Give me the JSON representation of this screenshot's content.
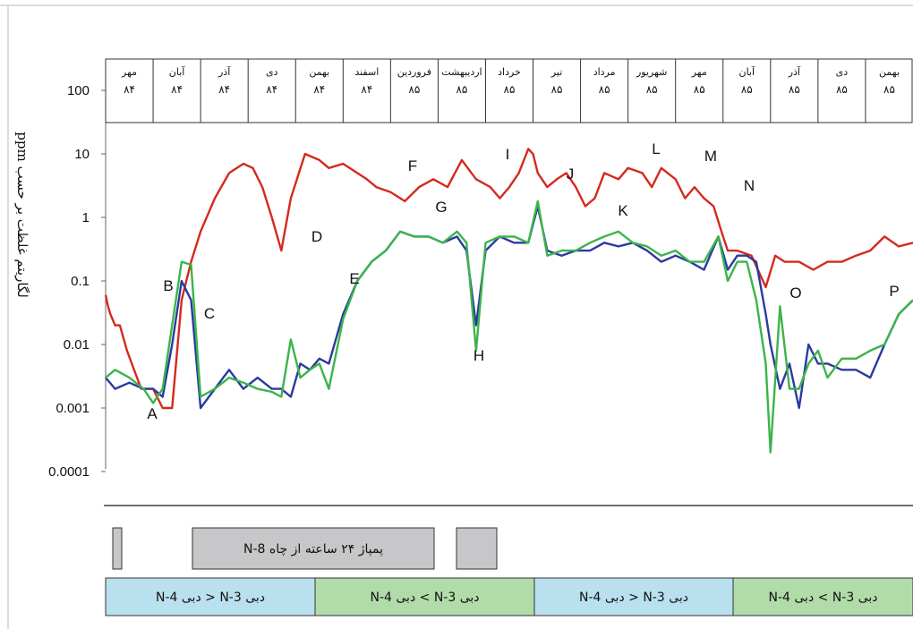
{
  "chart_data": {
    "type": "line",
    "title": "",
    "ylabel": "لگاریتم غلظت بر حسب ppm",
    "yscale": "log",
    "ylim": [
      0.0001,
      100
    ],
    "y_ticks": [
      "100",
      "10",
      "1",
      "0.1",
      "0.01",
      "0.001",
      "0.0001"
    ],
    "x_months": [
      {
        "name": "مهر",
        "year": "۸۴"
      },
      {
        "name": "آبان",
        "year": "۸۴"
      },
      {
        "name": "آذر",
        "year": "۸۴"
      },
      {
        "name": "دی",
        "year": "۸۴"
      },
      {
        "name": "بهمن",
        "year": "۸۴"
      },
      {
        "name": "اسفند",
        "year": "۸۴"
      },
      {
        "name": "فروردین",
        "year": "۸۵"
      },
      {
        "name": "اردیبهشت",
        "year": "۸۵"
      },
      {
        "name": "خرداد",
        "year": "۸۵"
      },
      {
        "name": "تیر",
        "year": "۸۵"
      },
      {
        "name": "مرداد",
        "year": "۸۵"
      },
      {
        "name": "شهریور",
        "year": "۸۵"
      },
      {
        "name": "مهر",
        "year": "۸۵"
      },
      {
        "name": "آبان",
        "year": "۸۵"
      },
      {
        "name": "آذر",
        "year": "۸۵"
      },
      {
        "name": "دی",
        "year": "۸۵"
      },
      {
        "name": "بهمن",
        "year": "۸۵"
      }
    ],
    "series": [
      {
        "color": "#d42a1e",
        "x": [
          0,
          0.05,
          0.1,
          0.2,
          0.3,
          0.45,
          0.6,
          0.75,
          1.0,
          1.2,
          1.4,
          1.6,
          1.8,
          2.0,
          2.3,
          2.6,
          2.9,
          3.1,
          3.3,
          3.5,
          3.7,
          3.9,
          4.2,
          4.5,
          4.7,
          5.0,
          5.3,
          5.5,
          5.7,
          6.0,
          6.3,
          6.6,
          6.9,
          7.2,
          7.5,
          7.8,
          8.1,
          8.3,
          8.5,
          8.7,
          8.9,
          9.0,
          9.1,
          9.3,
          9.5,
          9.7,
          9.9,
          10.1,
          10.3,
          10.5,
          10.8,
          11.0,
          11.3,
          11.5,
          11.7,
          12.0,
          12.2,
          12.4,
          12.6,
          12.8,
          13.0,
          13.1,
          13.3,
          13.6,
          13.9,
          14.1,
          14.3,
          14.6,
          14.9,
          15.2,
          15.5,
          15.8,
          16.1,
          16.4,
          16.7,
          17.0
        ],
        "values": [
          0.06,
          0.04,
          0.03,
          0.02,
          0.02,
          0.008,
          0.004,
          0.002,
          0.002,
          0.001,
          0.001,
          0.05,
          0.2,
          0.6,
          2,
          5,
          7,
          6,
          3,
          1,
          0.3,
          2,
          10,
          8,
          6,
          7,
          5,
          4,
          3,
          2.5,
          1.8,
          3,
          4,
          3,
          8,
          4,
          3,
          2,
          3,
          5,
          12,
          10,
          5,
          3,
          4,
          5,
          3,
          1.5,
          2,
          5,
          4,
          6,
          5,
          3,
          6,
          4,
          2,
          3,
          2,
          1.5,
          0.5,
          0.3,
          0.3,
          0.25,
          0.08,
          0.25,
          0.2,
          0.2,
          0.15,
          0.2,
          0.2,
          0.25,
          0.3,
          0.5,
          0.35,
          0.4
        ]
      },
      {
        "color": "#2b3a9e",
        "x": [
          0,
          0.2,
          0.5,
          0.8,
          1.0,
          1.2,
          1.4,
          1.6,
          1.8,
          2.0,
          2.3,
          2.6,
          2.9,
          3.2,
          3.5,
          3.7,
          3.9,
          4.1,
          4.3,
          4.5,
          4.7,
          5.0,
          5.3,
          5.6,
          5.9,
          6.2,
          6.5,
          6.8,
          7.1,
          7.4,
          7.6,
          7.8,
          8.0,
          8.3,
          8.6,
          8.9,
          9.1,
          9.3,
          9.6,
          9.9,
          10.2,
          10.5,
          10.8,
          11.1,
          11.4,
          11.7,
          12.0,
          12.3,
          12.6,
          12.9,
          13.1,
          13.3,
          13.5,
          13.7,
          13.9,
          14.0,
          14.2,
          14.4,
          14.6,
          14.8,
          15.0,
          15.2,
          15.5,
          15.8,
          16.1,
          16.4,
          16.7,
          17.0
        ],
        "values": [
          0.003,
          0.002,
          0.0025,
          0.002,
          0.002,
          0.0015,
          0.01,
          0.1,
          0.05,
          0.001,
          0.002,
          0.004,
          0.002,
          0.003,
          0.002,
          0.002,
          0.0015,
          0.005,
          0.004,
          0.006,
          0.005,
          0.03,
          0.1,
          0.2,
          0.3,
          0.6,
          0.5,
          0.5,
          0.4,
          0.5,
          0.3,
          0.02,
          0.3,
          0.5,
          0.4,
          0.4,
          1.5,
          0.3,
          0.25,
          0.3,
          0.3,
          0.4,
          0.35,
          0.4,
          0.3,
          0.2,
          0.25,
          0.2,
          0.15,
          0.5,
          0.15,
          0.25,
          0.25,
          0.2,
          0.03,
          0.01,
          0.002,
          0.005,
          0.001,
          0.01,
          0.005,
          0.005,
          0.004,
          0.004,
          0.003,
          0.01,
          0.03,
          0.05
        ]
      },
      {
        "color": "#3cb44b",
        "x": [
          0,
          0.2,
          0.5,
          0.8,
          1.0,
          1.2,
          1.4,
          1.6,
          1.8,
          2.0,
          2.3,
          2.6,
          2.9,
          3.2,
          3.5,
          3.7,
          3.9,
          4.1,
          4.3,
          4.5,
          4.7,
          5.0,
          5.3,
          5.6,
          5.9,
          6.2,
          6.5,
          6.8,
          7.1,
          7.4,
          7.6,
          7.8,
          8.0,
          8.3,
          8.6,
          8.9,
          9.1,
          9.3,
          9.6,
          9.9,
          10.2,
          10.5,
          10.8,
          11.1,
          11.4,
          11.7,
          12.0,
          12.3,
          12.6,
          12.9,
          13.1,
          13.3,
          13.5,
          13.7,
          13.9,
          14.0,
          14.2,
          14.4,
          14.6,
          14.8,
          15.0,
          15.2,
          15.5,
          15.8,
          16.1,
          16.4,
          16.7,
          17.0
        ],
        "values": [
          0.003,
          0.004,
          0.003,
          0.002,
          0.0012,
          0.002,
          0.02,
          0.2,
          0.18,
          0.0015,
          0.002,
          0.003,
          0.0025,
          0.002,
          0.0018,
          0.0015,
          0.012,
          0.003,
          0.004,
          0.005,
          0.002,
          0.025,
          0.1,
          0.2,
          0.3,
          0.6,
          0.5,
          0.5,
          0.4,
          0.6,
          0.4,
          0.008,
          0.4,
          0.5,
          0.5,
          0.4,
          1.8,
          0.25,
          0.3,
          0.3,
          0.4,
          0.5,
          0.6,
          0.4,
          0.35,
          0.25,
          0.3,
          0.2,
          0.2,
          0.5,
          0.1,
          0.2,
          0.2,
          0.05,
          0.005,
          0.0002,
          0.04,
          0.002,
          0.002,
          0.005,
          0.008,
          0.003,
          0.006,
          0.006,
          0.008,
          0.01,
          0.03,
          0.05
        ]
      }
    ],
    "annotations": [
      "A",
      "B",
      "C",
      "D",
      "E",
      "F",
      "G",
      "H",
      "I",
      "J",
      "K",
      "L",
      "M",
      "N",
      "O",
      "P"
    ],
    "pump_bars": {
      "label": "پمپاژ ۲۴ ساعته از چاه N-8"
    },
    "flow_bands": [
      {
        "text": "دبی N-3 < دبی N-4",
        "color": "#b9e0ee"
      },
      {
        "text": "دبی N-3 > دبی N-4",
        "color": "#b2dbaa"
      },
      {
        "text": "دبی N-3 < دبی N-4",
        "color": "#b9e0ee"
      },
      {
        "text": "دبی N-3 > دبی N-4",
        "color": "#b2dbaa"
      }
    ]
  }
}
